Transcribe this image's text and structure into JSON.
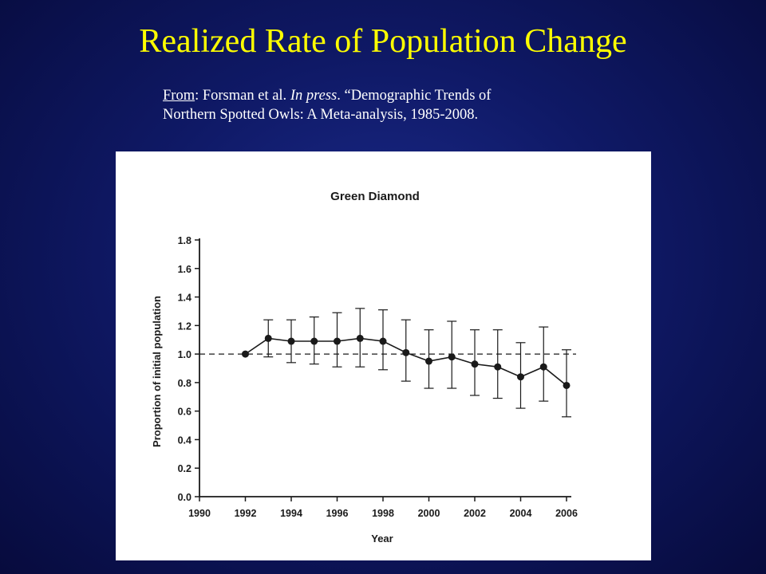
{
  "slide": {
    "title": "Realized Rate of Population Change",
    "citation": {
      "from_label": "From",
      "authors": ": Forsman et al. ",
      "status": "In press",
      "rest_line1": ". “Demographic Trends of",
      "line2": "Northern Spotted Owls: A Meta-analysis, 1985-2008."
    }
  },
  "colors": {
    "background": "#0f1966",
    "title": "#ffff00",
    "citation": "#ffffff",
    "figure_background": "#ffffff",
    "series": "#1a1a1a"
  },
  "chart_data": {
    "type": "line",
    "title": "Green Diamond",
    "xlabel": "Year",
    "ylabel": "Proportion of initial population",
    "xlim": [
      1990,
      2006
    ],
    "ylim": [
      0.0,
      1.8
    ],
    "xticks": [
      "1990",
      "1992",
      "1994",
      "1996",
      "1998",
      "2000",
      "2002",
      "2004",
      "2006"
    ],
    "yticks": [
      "0.0",
      "0.2",
      "0.4",
      "0.6",
      "0.8",
      "1.0",
      "1.2",
      "1.4",
      "1.6",
      "1.8"
    ],
    "reference_line": 1.0,
    "grid": false,
    "series": [
      {
        "x": [
          1992,
          1993,
          1994,
          1995,
          1996,
          1997,
          1998,
          1999,
          2000,
          2001,
          2002,
          2003,
          2004,
          2005,
          2006
        ],
        "y": [
          1.0,
          1.11,
          1.09,
          1.09,
          1.09,
          1.11,
          1.09,
          1.01,
          0.95,
          0.98,
          0.93,
          0.91,
          0.84,
          0.91,
          0.78
        ],
        "lower": [
          1.0,
          0.98,
          0.94,
          0.93,
          0.91,
          0.91,
          0.89,
          0.81,
          0.76,
          0.76,
          0.71,
          0.69,
          0.62,
          0.67,
          0.56
        ],
        "upper": [
          1.0,
          1.24,
          1.24,
          1.26,
          1.29,
          1.32,
          1.31,
          1.24,
          1.17,
          1.23,
          1.17,
          1.17,
          1.08,
          1.19,
          1.03
        ]
      }
    ]
  }
}
